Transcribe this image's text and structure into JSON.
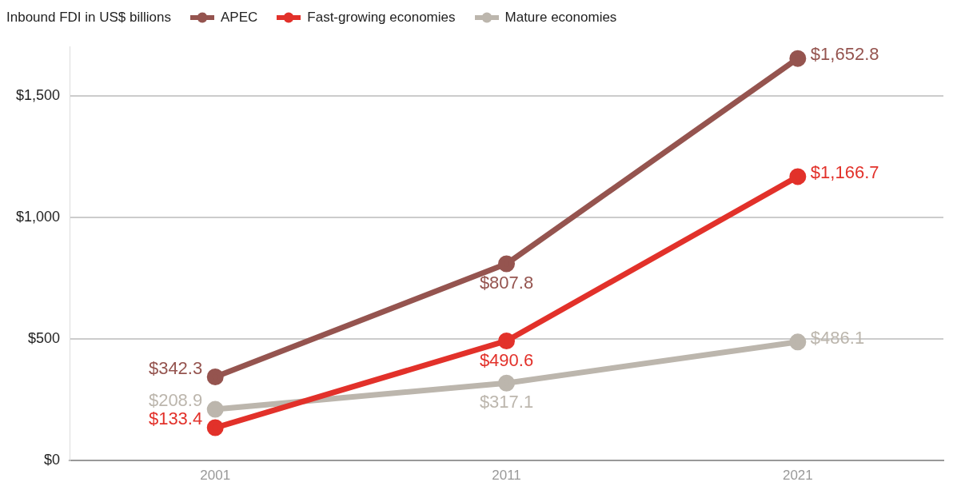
{
  "chart_data": {
    "type": "line",
    "ylabel": "Inbound FDI in US$ billions",
    "categories": [
      "2001",
      "2011",
      "2021"
    ],
    "series": [
      {
        "name": "APEC",
        "color": "#95544f",
        "values": [
          342.3,
          807.8,
          1652.8
        ],
        "value_labels": [
          "$342.3",
          "$807.8",
          "$1,652.8"
        ]
      },
      {
        "name": "Fast-growing economies",
        "color": "#e2312a",
        "values": [
          133.4,
          490.6,
          1166.7
        ],
        "value_labels": [
          "$133.4",
          "$490.6",
          "$1,166.7"
        ]
      },
      {
        "name": "Mature economies",
        "color": "#bcb6ad",
        "values": [
          208.9,
          317.1,
          486.1
        ],
        "value_labels": [
          "$208.9",
          "$317.1",
          "$486.1"
        ]
      }
    ],
    "ylim": [
      0,
      1700
    ],
    "yticks": [
      {
        "value": 0,
        "label": "$0"
      },
      {
        "value": 500,
        "label": "$500"
      },
      {
        "value": 1000,
        "label": "$1,000"
      },
      {
        "value": 1500,
        "label": "$1,500"
      }
    ],
    "grid": "y",
    "legend": "top",
    "marker": "circle",
    "line_style": "solid"
  }
}
